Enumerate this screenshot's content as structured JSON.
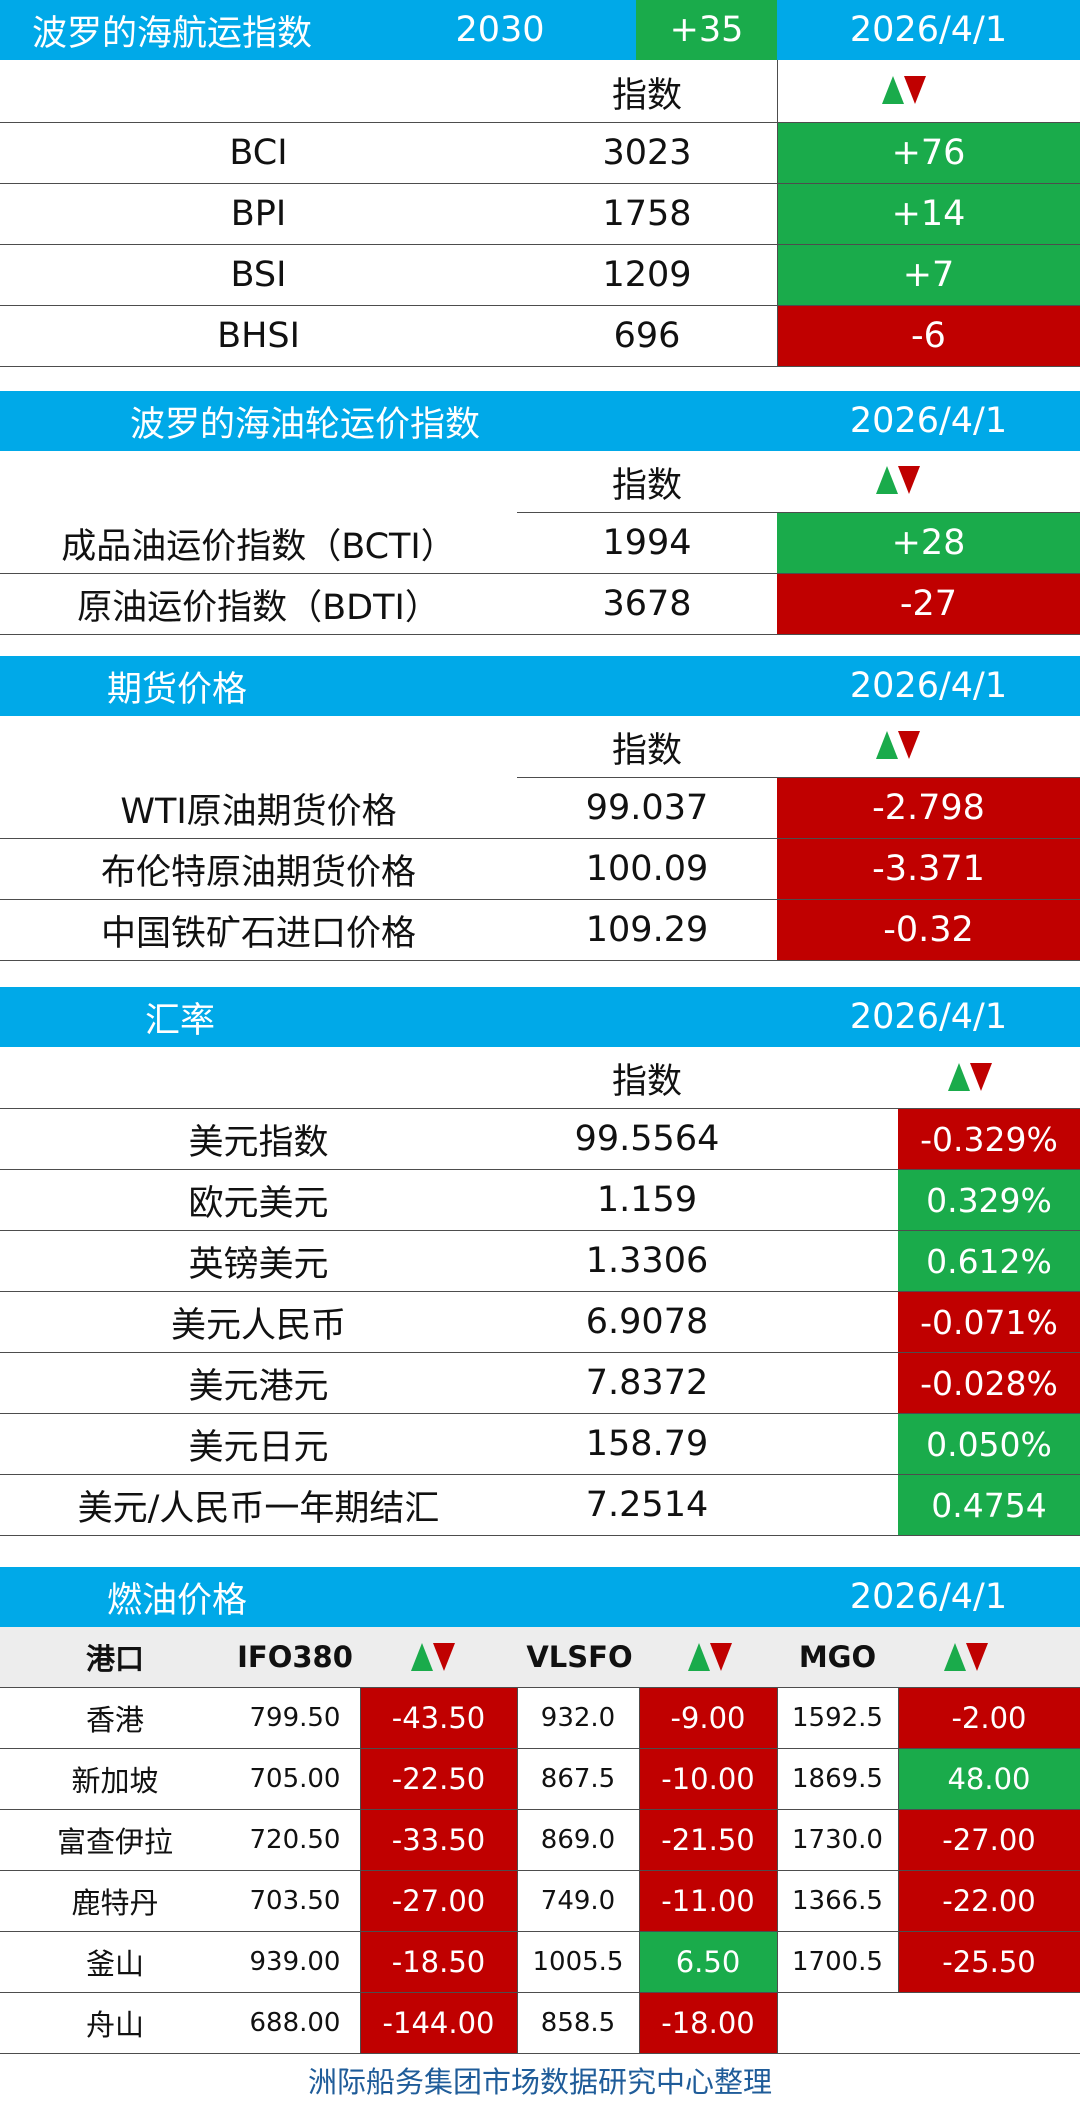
{
  "baltic_dry": {
    "title": "波罗的海航运指数",
    "value": "2030",
    "change": "+35",
    "date": "2026/4/1",
    "col_index": "指数",
    "rows": [
      {
        "name": "BCI",
        "value": "3023",
        "change": "+76",
        "trend": "up"
      },
      {
        "name": "BPI",
        "value": "1758",
        "change": "+14",
        "trend": "up"
      },
      {
        "name": "BSI",
        "value": "1209",
        "change": "+7",
        "trend": "up"
      },
      {
        "name": "BHSI",
        "value": "696",
        "change": "-6",
        "trend": "down"
      }
    ]
  },
  "tanker": {
    "title": "波罗的海油轮运价指数",
    "date": "2026/4/1",
    "col_index": "指数",
    "rows": [
      {
        "name": "成品油运价指数（BCTI）",
        "value": "1994",
        "change": "+28",
        "trend": "up"
      },
      {
        "name": "原油运价指数（BDTI）",
        "value": "3678",
        "change": "-27",
        "trend": "down"
      }
    ]
  },
  "futures": {
    "title": "期货价格",
    "date": "2026/4/1",
    "col_index": "指数",
    "rows": [
      {
        "name": "WTI原油期货价格",
        "value": "99.037",
        "change": "-2.798",
        "trend": "down"
      },
      {
        "name": "布伦特原油期货价格",
        "value": "100.09",
        "change": "-3.371",
        "trend": "down"
      },
      {
        "name": "中国铁矿石进口价格",
        "value": "109.29",
        "change": "-0.32",
        "trend": "down"
      }
    ]
  },
  "fx": {
    "title": "汇率",
    "date": "2026/4/1",
    "col_index": "指数",
    "rows": [
      {
        "name": "美元指数",
        "value": "99.5564",
        "change": "-0.329%",
        "trend": "down"
      },
      {
        "name": "欧元美元",
        "value": "1.159",
        "change": "0.329%",
        "trend": "up"
      },
      {
        "name": "英镑美元",
        "value": "1.3306",
        "change": "0.612%",
        "trend": "up"
      },
      {
        "name": "美元人民币",
        "value": "6.9078",
        "change": "-0.071%",
        "trend": "down"
      },
      {
        "name": "美元港元",
        "value": "7.8372",
        "change": "-0.028%",
        "trend": "down"
      },
      {
        "name": "美元日元",
        "value": "158.79",
        "change": "0.050%",
        "trend": "up"
      },
      {
        "name": "美元/人民币一年期结汇",
        "value": "7.2514",
        "change": "0.4754",
        "trend": "up"
      }
    ]
  },
  "bunker": {
    "title": "燃油价格",
    "date": "2026/4/1",
    "headers": {
      "port": "港口",
      "ifo": "IFO380",
      "vlsfo": "VLSFO",
      "mgo": "MGO"
    },
    "rows": [
      {
        "port": "香港",
        "ifo": "799.50",
        "ifo_chg": "-43.50",
        "ifo_trend": "down",
        "vlsfo": "932.0",
        "vlsfo_chg": "-9.00",
        "vlsfo_trend": "down",
        "mgo": "1592.5",
        "mgo_chg": "-2.00",
        "mgo_trend": "down"
      },
      {
        "port": "新加坡",
        "ifo": "705.00",
        "ifo_chg": "-22.50",
        "ifo_trend": "down",
        "vlsfo": "867.5",
        "vlsfo_chg": "-10.00",
        "vlsfo_trend": "down",
        "mgo": "1869.5",
        "mgo_chg": "48.00",
        "mgo_trend": "up"
      },
      {
        "port": "富查伊拉",
        "ifo": "720.50",
        "ifo_chg": "-33.50",
        "ifo_trend": "down",
        "vlsfo": "869.0",
        "vlsfo_chg": "-21.50",
        "vlsfo_trend": "down",
        "mgo": "1730.0",
        "mgo_chg": "-27.00",
        "mgo_trend": "down"
      },
      {
        "port": "鹿特丹",
        "ifo": "703.50",
        "ifo_chg": "-27.00",
        "ifo_trend": "down",
        "vlsfo": "749.0",
        "vlsfo_chg": "-11.00",
        "vlsfo_trend": "down",
        "mgo": "1366.5",
        "mgo_chg": "-22.00",
        "mgo_trend": "down"
      },
      {
        "port": "釜山",
        "ifo": "939.00",
        "ifo_chg": "-18.50",
        "ifo_trend": "down",
        "vlsfo": "1005.5",
        "vlsfo_chg": "6.50",
        "vlsfo_trend": "up",
        "mgo": "1700.5",
        "mgo_chg": "-25.50",
        "mgo_trend": "down"
      },
      {
        "port": "舟山",
        "ifo": "688.00",
        "ifo_chg": "-144.00",
        "ifo_trend": "down",
        "vlsfo": "858.5",
        "vlsfo_chg": "-18.00",
        "vlsfo_trend": "down",
        "mgo": "",
        "mgo_chg": "",
        "mgo_trend": ""
      }
    ]
  },
  "colors": {
    "header_blue": "#00a9e8",
    "up_green": "#1aab4b",
    "down_red": "#c00000",
    "footer_text": "#1f5c99"
  },
  "footer": "洲际船务集团市场数据研究中心整理"
}
